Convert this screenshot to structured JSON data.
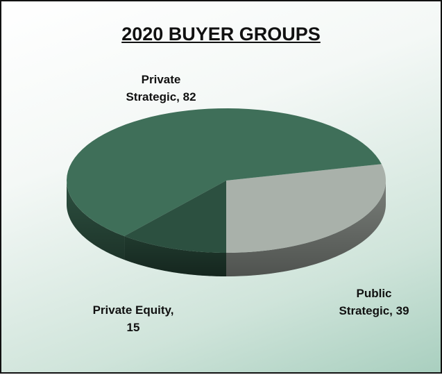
{
  "chart_data": {
    "type": "pie",
    "title": "2020 BUYER GROUPS",
    "values": [
      39,
      82,
      15
    ],
    "value_labels": [
      "Public Strategic, 39",
      "Private Strategic, 82",
      "Private Equity, 15"
    ],
    "colors": [
      "#a9b1aa",
      "#3f6f59",
      "#2c5040"
    ]
  }
}
